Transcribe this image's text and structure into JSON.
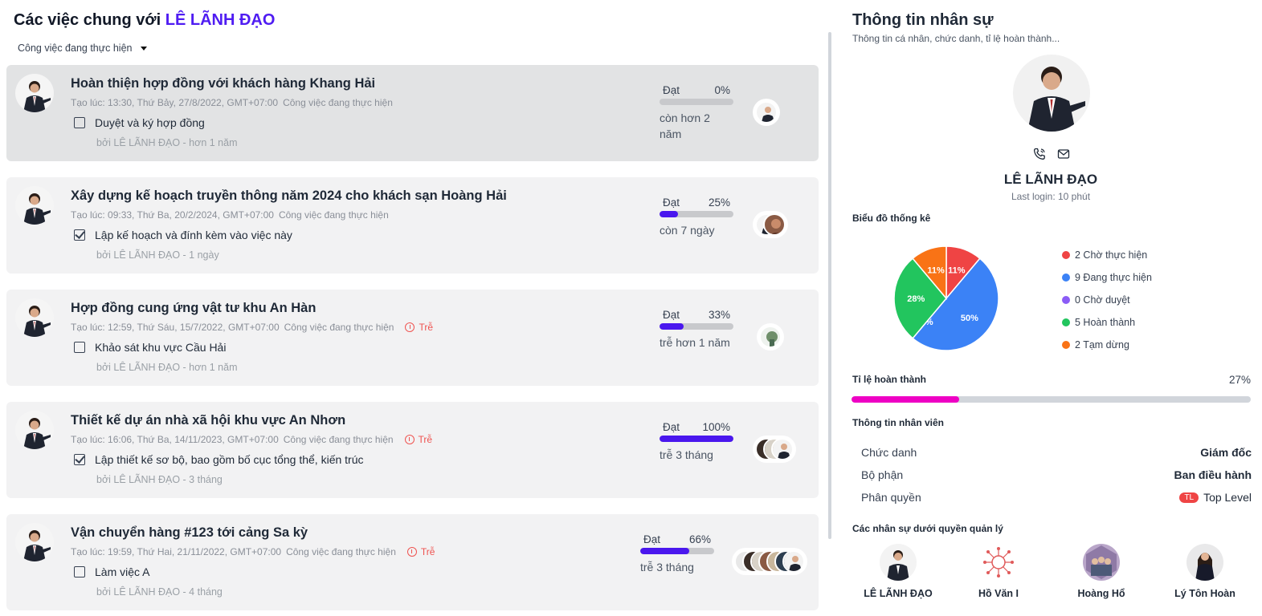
{
  "header": {
    "title_prefix": "Các việc chung với",
    "title_highlight": "LÊ LÃNH ĐẠO",
    "filter_label": "Công việc đang thực hiện"
  },
  "tasks": [
    {
      "title": "Hoàn thiện hợp đồng với khách hàng Khang Hải",
      "meta": "Tạo lúc: 13:30, Thứ Bảy, 27/8/2022, GMT+07:00",
      "status": "Công việc đang thực hiện",
      "late": "",
      "subtask": "Duyệt và ký hợp đồng",
      "subtask_checked": false,
      "by": "bởi LÊ LÃNH ĐẠO - hơn 1 năm",
      "progress_label": "Đạt",
      "progress_text": "0%",
      "progress": 0,
      "remaining": "còn hơn 2 năm"
    },
    {
      "title": "Xây dựng kế hoạch truyền thông năm 2024 cho khách sạn Hoàng Hải",
      "meta": "Tạo lúc: 09:33, Thứ Ba, 20/2/2024, GMT+07:00",
      "status": "Công việc đang thực hiện",
      "late": "",
      "subtask": "Lập kế hoạch và đính kèm vào việc này",
      "subtask_checked": true,
      "by": "bởi LÊ LÃNH ĐẠO - 1 ngày",
      "progress_label": "Đạt",
      "progress_text": "25%",
      "progress": 25,
      "remaining": "còn 7 ngày"
    },
    {
      "title": "Hợp đồng cung ứng vật tư khu An Hàn",
      "meta": "Tạo lúc: 12:59, Thứ Sáu, 15/7/2022, GMT+07:00",
      "status": "Công việc đang thực hiện",
      "late": "Trễ",
      "subtask": "Khảo sát khu vực Cầu Hải",
      "subtask_checked": false,
      "by": "bởi LÊ LÃNH ĐẠO - hơn 1 năm",
      "progress_label": "Đạt",
      "progress_text": "33%",
      "progress": 33,
      "remaining": "trễ hơn 1 năm"
    },
    {
      "title": "Thiết kế dự án nhà xã hội khu vực An Nhơn",
      "meta": "Tạo lúc: 16:06, Thứ Ba, 14/11/2023, GMT+07:00",
      "status": "Công việc đang thực hiện",
      "late": "Trễ",
      "subtask": "Lập thiết kế sơ bộ, bao gồm bố cục tổng thể, kiến trúc",
      "subtask_checked": true,
      "by": "bởi LÊ LÃNH ĐẠO - 3 tháng",
      "progress_label": "Đạt",
      "progress_text": "100%",
      "progress": 100,
      "remaining": "trễ 3 tháng"
    },
    {
      "title": "Vận chuyển hàng #123 tới cảng Sa kỳ",
      "meta": "Tạo lúc: 19:59, Thứ Hai, 21/11/2022, GMT+07:00",
      "status": "Công việc đang thực hiện",
      "late": "Trễ",
      "subtask": "Làm việc A",
      "subtask_checked": false,
      "by": "bởi LÊ LÃNH ĐẠO - 4 tháng",
      "progress_label": "Đạt",
      "progress_text": "66%",
      "progress": 66,
      "remaining": "trễ 3 tháng"
    }
  ],
  "profile": {
    "title": "Thông tin nhân sự",
    "subtitle": "Thông tin cá nhân, chức danh, tỉ lệ hoàn thành...",
    "name": "LÊ LÃNH ĐẠO",
    "last_login": "Last login: 10 phút",
    "icons": [
      "phone-icon",
      "mail-icon"
    ],
    "chart_section": "Biểu đồ thống kê",
    "chart_data": {
      "type": "pie",
      "slices": [
        {
          "label": "Chờ thực hiện",
          "count": 2,
          "percent": 11,
          "color": "#ef4444"
        },
        {
          "label": "Đang thực hiện",
          "count": 9,
          "percent": 50,
          "color": "#3b82f6"
        },
        {
          "label": "Chờ duyệt",
          "count": 0,
          "percent": 0,
          "color": "#8b5cf6"
        },
        {
          "label": "Hoàn thành",
          "count": 5,
          "percent": 28,
          "color": "#22c55e"
        },
        {
          "label": "Tạm dừng",
          "count": 2,
          "percent": 11,
          "color": "#f97316"
        }
      ],
      "slice_labels": [
        "11%",
        "50%",
        "0%",
        "28%",
        "11%"
      ],
      "legend": [
        "2 Chờ thực hiện",
        "9 Đang thực hiện",
        "0 Chờ duyệt",
        "5 Hoàn thành",
        "2 Tạm dừng"
      ]
    },
    "rate_section": "Tỉ lệ hoàn thành",
    "rate_text": "27%",
    "rate": 27,
    "info_section": "Thông tin nhân viên",
    "info": [
      {
        "label": "Chức danh",
        "value": "Giám đốc"
      },
      {
        "label": "Bộ phận",
        "value": "Ban điều hành"
      },
      {
        "label": "Phân quyền",
        "badge": "TL",
        "value": "Top Level"
      }
    ],
    "subordinates_section": "Các nhân sự dưới quyền quản lý",
    "subordinates": [
      "LÊ LÃNH ĐẠO",
      "Hồ Văn I",
      "Hoàng Hổ",
      "Lý Tôn Hoàn"
    ]
  },
  "colors": {
    "accent": "#4f1cf2",
    "progress": "#4a17ee",
    "rate": "#ee00c4",
    "late": "#ef5350"
  }
}
